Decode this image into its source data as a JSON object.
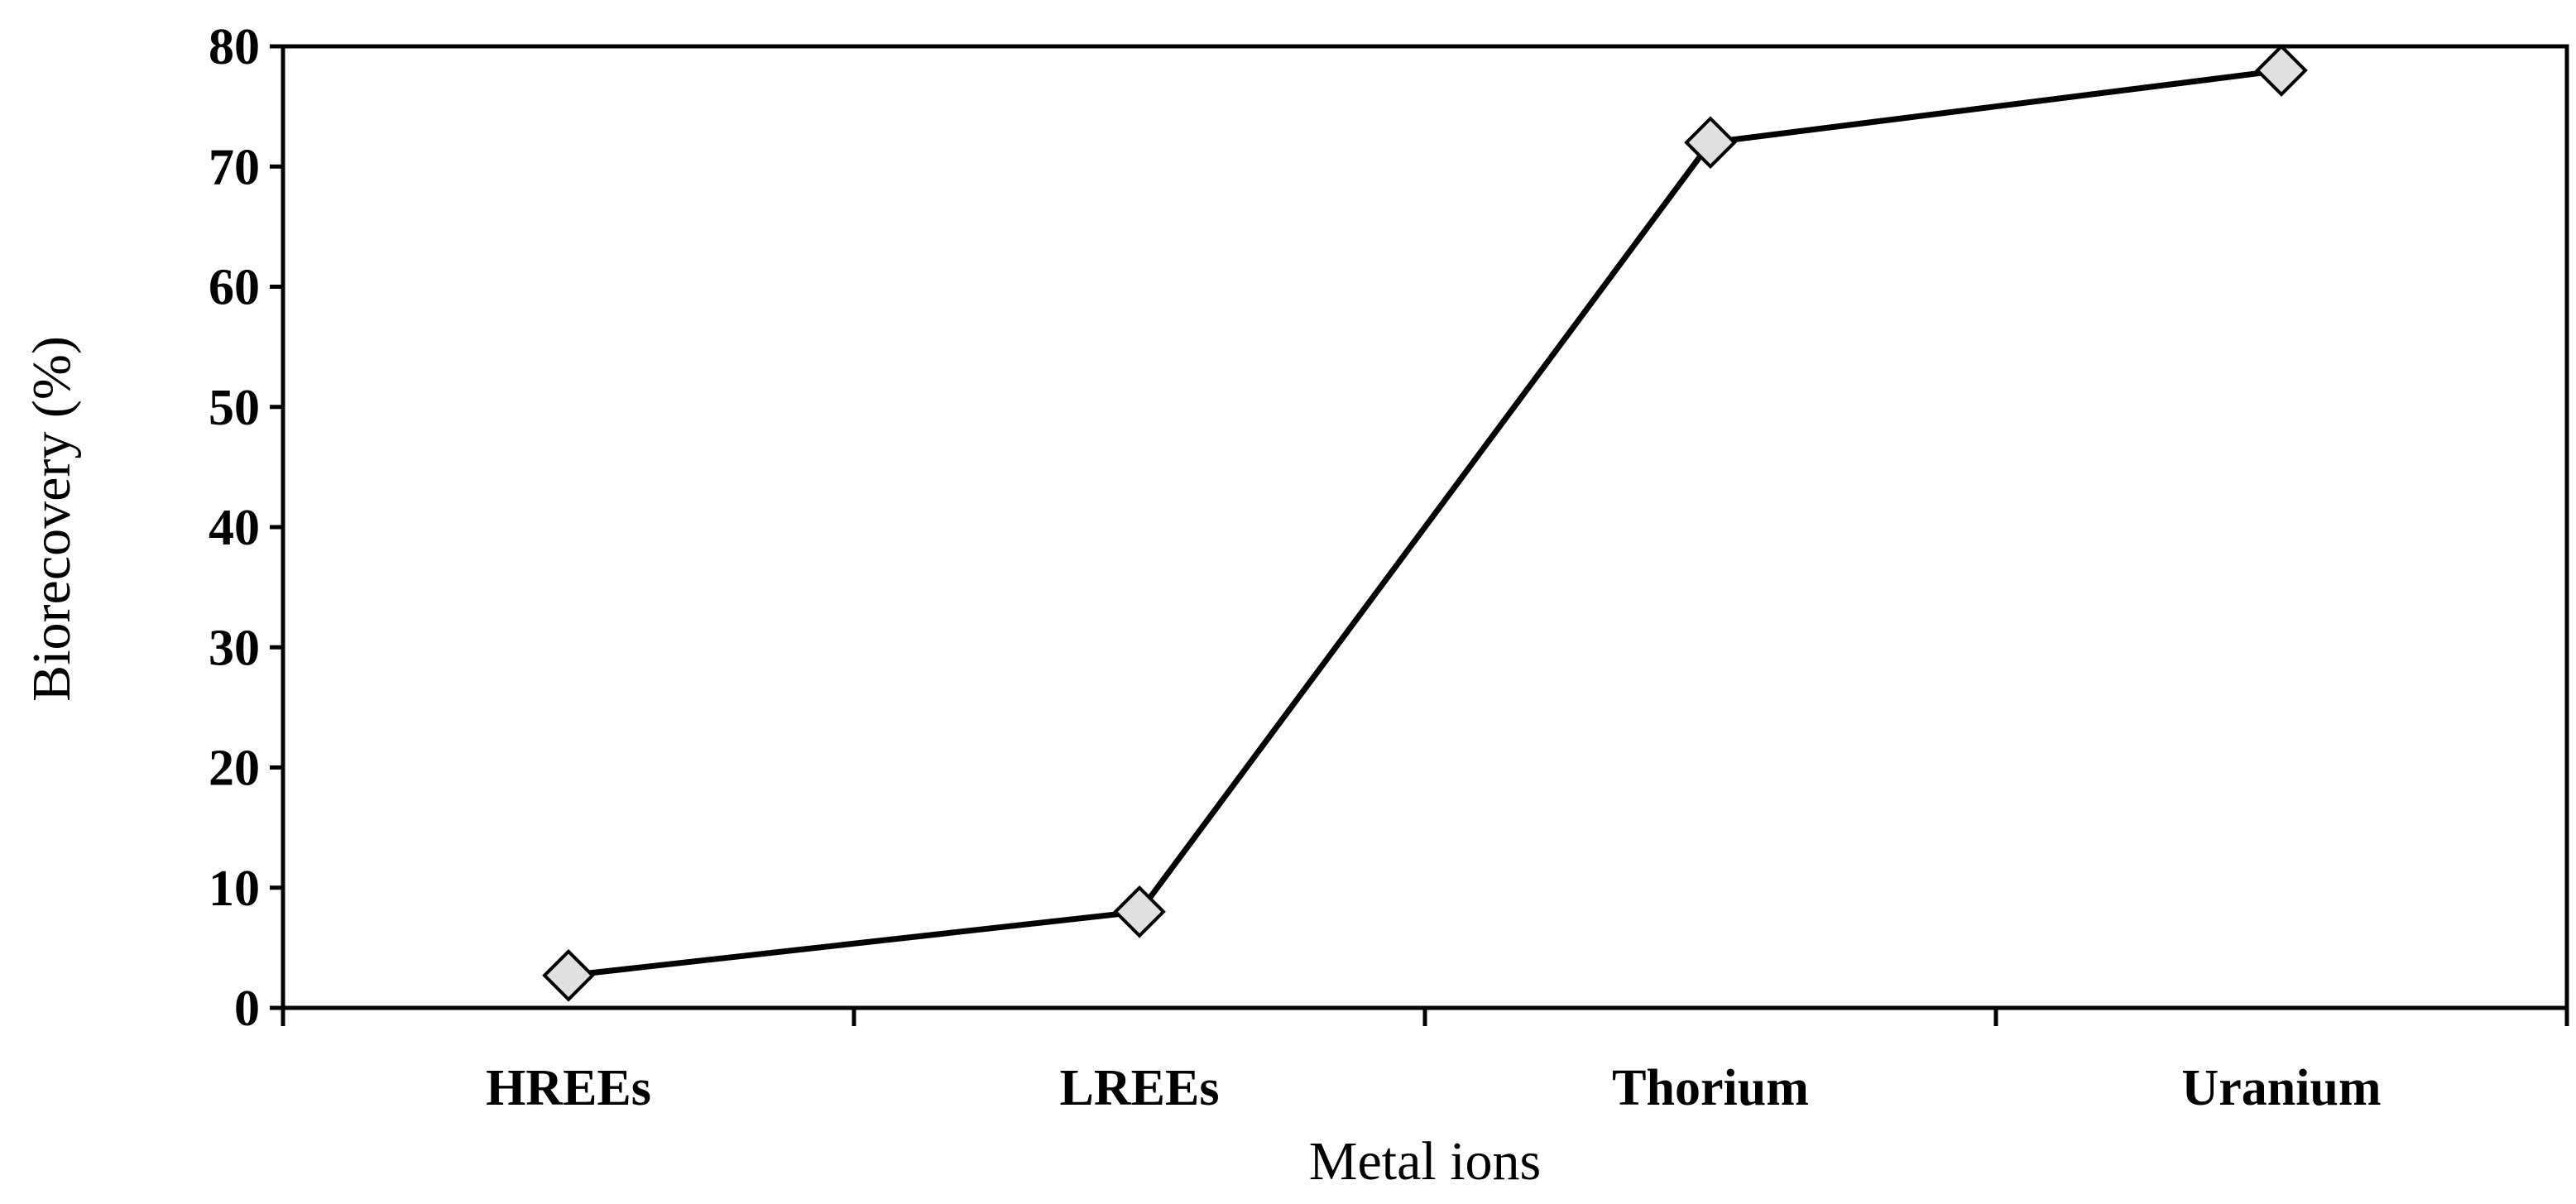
{
  "chart_data": {
    "type": "line",
    "title": "",
    "xlabel": "Metal ions",
    "ylabel": "Biorecovery (%)",
    "categories": [
      "HREEs",
      "LREEs",
      "Thorium",
      "Uranium"
    ],
    "series": [
      {
        "values": [
          2.7,
          8,
          72,
          78
        ]
      }
    ],
    "ylim": [
      0,
      80
    ],
    "yticks": [
      "0",
      "10",
      "20",
      "30",
      "40",
      "50",
      "60",
      "70",
      "80"
    ],
    "grid": false,
    "legend": "none",
    "marker": "diamond",
    "colors": {
      "line": "#000000",
      "marker_fill": "#e0e0e0",
      "marker_stroke": "#000000",
      "frame": "#000000"
    }
  }
}
